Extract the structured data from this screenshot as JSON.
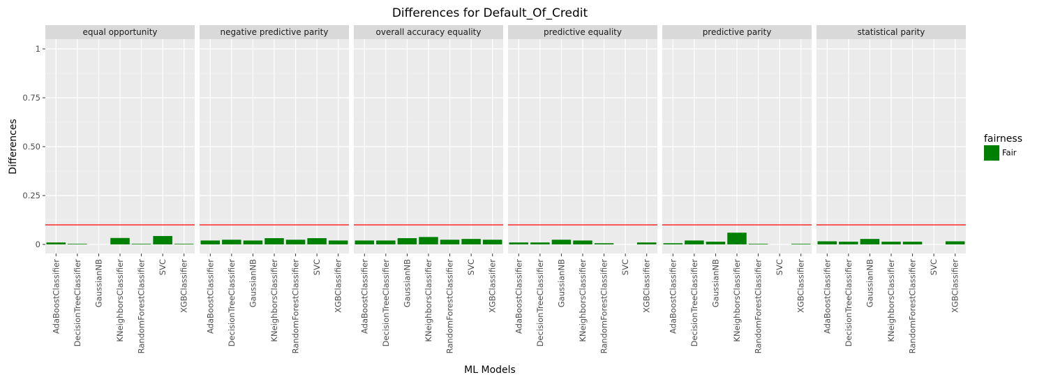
{
  "chart_data": {
    "type": "bar",
    "title": "Differences for Default_Of_Credit",
    "xlabel": "ML Models",
    "ylabel": "Differences",
    "ylim": [
      -0.05,
      1.05
    ],
    "yticks": [
      0,
      0.25,
      0.5,
      0.75,
      1
    ],
    "ytick_labels": [
      "0",
      "0.25",
      "0.50",
      "0.75",
      "1"
    ],
    "threshold": 0.1,
    "threshold_color": "#ff0000",
    "bar_color": "#008000",
    "panel_bg": "#ebebeb",
    "strip_bg": "#d9d9d9",
    "grid": true,
    "legend": {
      "title": "fairness",
      "placement": "right",
      "items": [
        {
          "label": "Fair",
          "color": "#008000"
        }
      ]
    },
    "categories": [
      "AdaBoostClassifier",
      "DecisionTreeClassifier",
      "GaussianNB",
      "KNeighborsClassifier",
      "RandomForestClassifier",
      "SVC",
      "XGBClassifier"
    ],
    "facets": [
      {
        "name": "equal opportunity",
        "values": [
          0.01,
          0.003,
          0,
          0.033,
          0.003,
          0.043,
          0.003
        ]
      },
      {
        "name": "negative predictive parity",
        "values": [
          0.02,
          0.024,
          0.02,
          0.032,
          0.024,
          0.032,
          0.02
        ]
      },
      {
        "name": "overall accuracy equality",
        "values": [
          0.02,
          0.02,
          0.032,
          0.038,
          0.024,
          0.028,
          0.024
        ]
      },
      {
        "name": "predictive equality",
        "values": [
          0.01,
          0.01,
          0.024,
          0.02,
          0.006,
          0,
          0.01
        ]
      },
      {
        "name": "predictive parity",
        "values": [
          0.006,
          0.02,
          0.014,
          0.06,
          0.003,
          0,
          0.003
        ]
      },
      {
        "name": "statistical parity",
        "values": [
          0.016,
          0.014,
          0.028,
          0.014,
          0.014,
          0,
          0.016
        ]
      }
    ]
  }
}
